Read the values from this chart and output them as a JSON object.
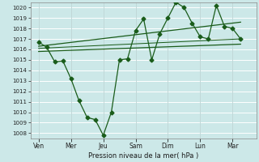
{
  "title": "",
  "xlabel": "Pression niveau de la mer( hPa )",
  "bg_color": "#cce8e8",
  "grid_color": "#ffffff",
  "line_color": "#1a5c1a",
  "ylim": [
    1007.5,
    1020.5
  ],
  "yticks": [
    1008,
    1009,
    1010,
    1011,
    1012,
    1013,
    1014,
    1015,
    1016,
    1017,
    1018,
    1019,
    1020
  ],
  "xtick_labels": [
    "Ven",
    "Mer",
    "Jeu",
    "Sam",
    "Dim",
    "Lun",
    "Mar"
  ],
  "x_positions": [
    0,
    2,
    4,
    6,
    8,
    10,
    12
  ],
  "xlim": [
    -0.5,
    13.5
  ],
  "main_series_x": [
    0,
    0.5,
    1,
    1.5,
    2,
    2.5,
    3,
    3.5,
    4,
    4.5,
    5,
    5.5,
    6,
    6.5,
    7,
    7.5,
    8,
    8.5,
    9,
    9.5,
    10,
    10.5,
    11,
    11.5,
    12,
    12.5
  ],
  "main_series_y": [
    1016.7,
    1016.2,
    1014.8,
    1014.9,
    1013.2,
    1011.1,
    1009.5,
    1009.3,
    1007.8,
    1010.0,
    1015.0,
    1015.1,
    1017.8,
    1018.9,
    1015.0,
    1017.5,
    1019.0,
    1020.5,
    1020.0,
    1018.5,
    1017.2,
    1017.0,
    1020.2,
    1018.2,
    1018.0,
    1017.0
  ],
  "trend1_x": [
    0,
    12.5
  ],
  "trend1_y": [
    1015.8,
    1016.5
  ],
  "trend2_x": [
    0,
    12.5
  ],
  "trend2_y": [
    1016.3,
    1018.6
  ],
  "trend3_x": [
    0,
    12.5
  ],
  "trend3_y": [
    1016.1,
    1017.0
  ],
  "marker": "D",
  "marker_size": 2.5,
  "linewidth": 0.9
}
